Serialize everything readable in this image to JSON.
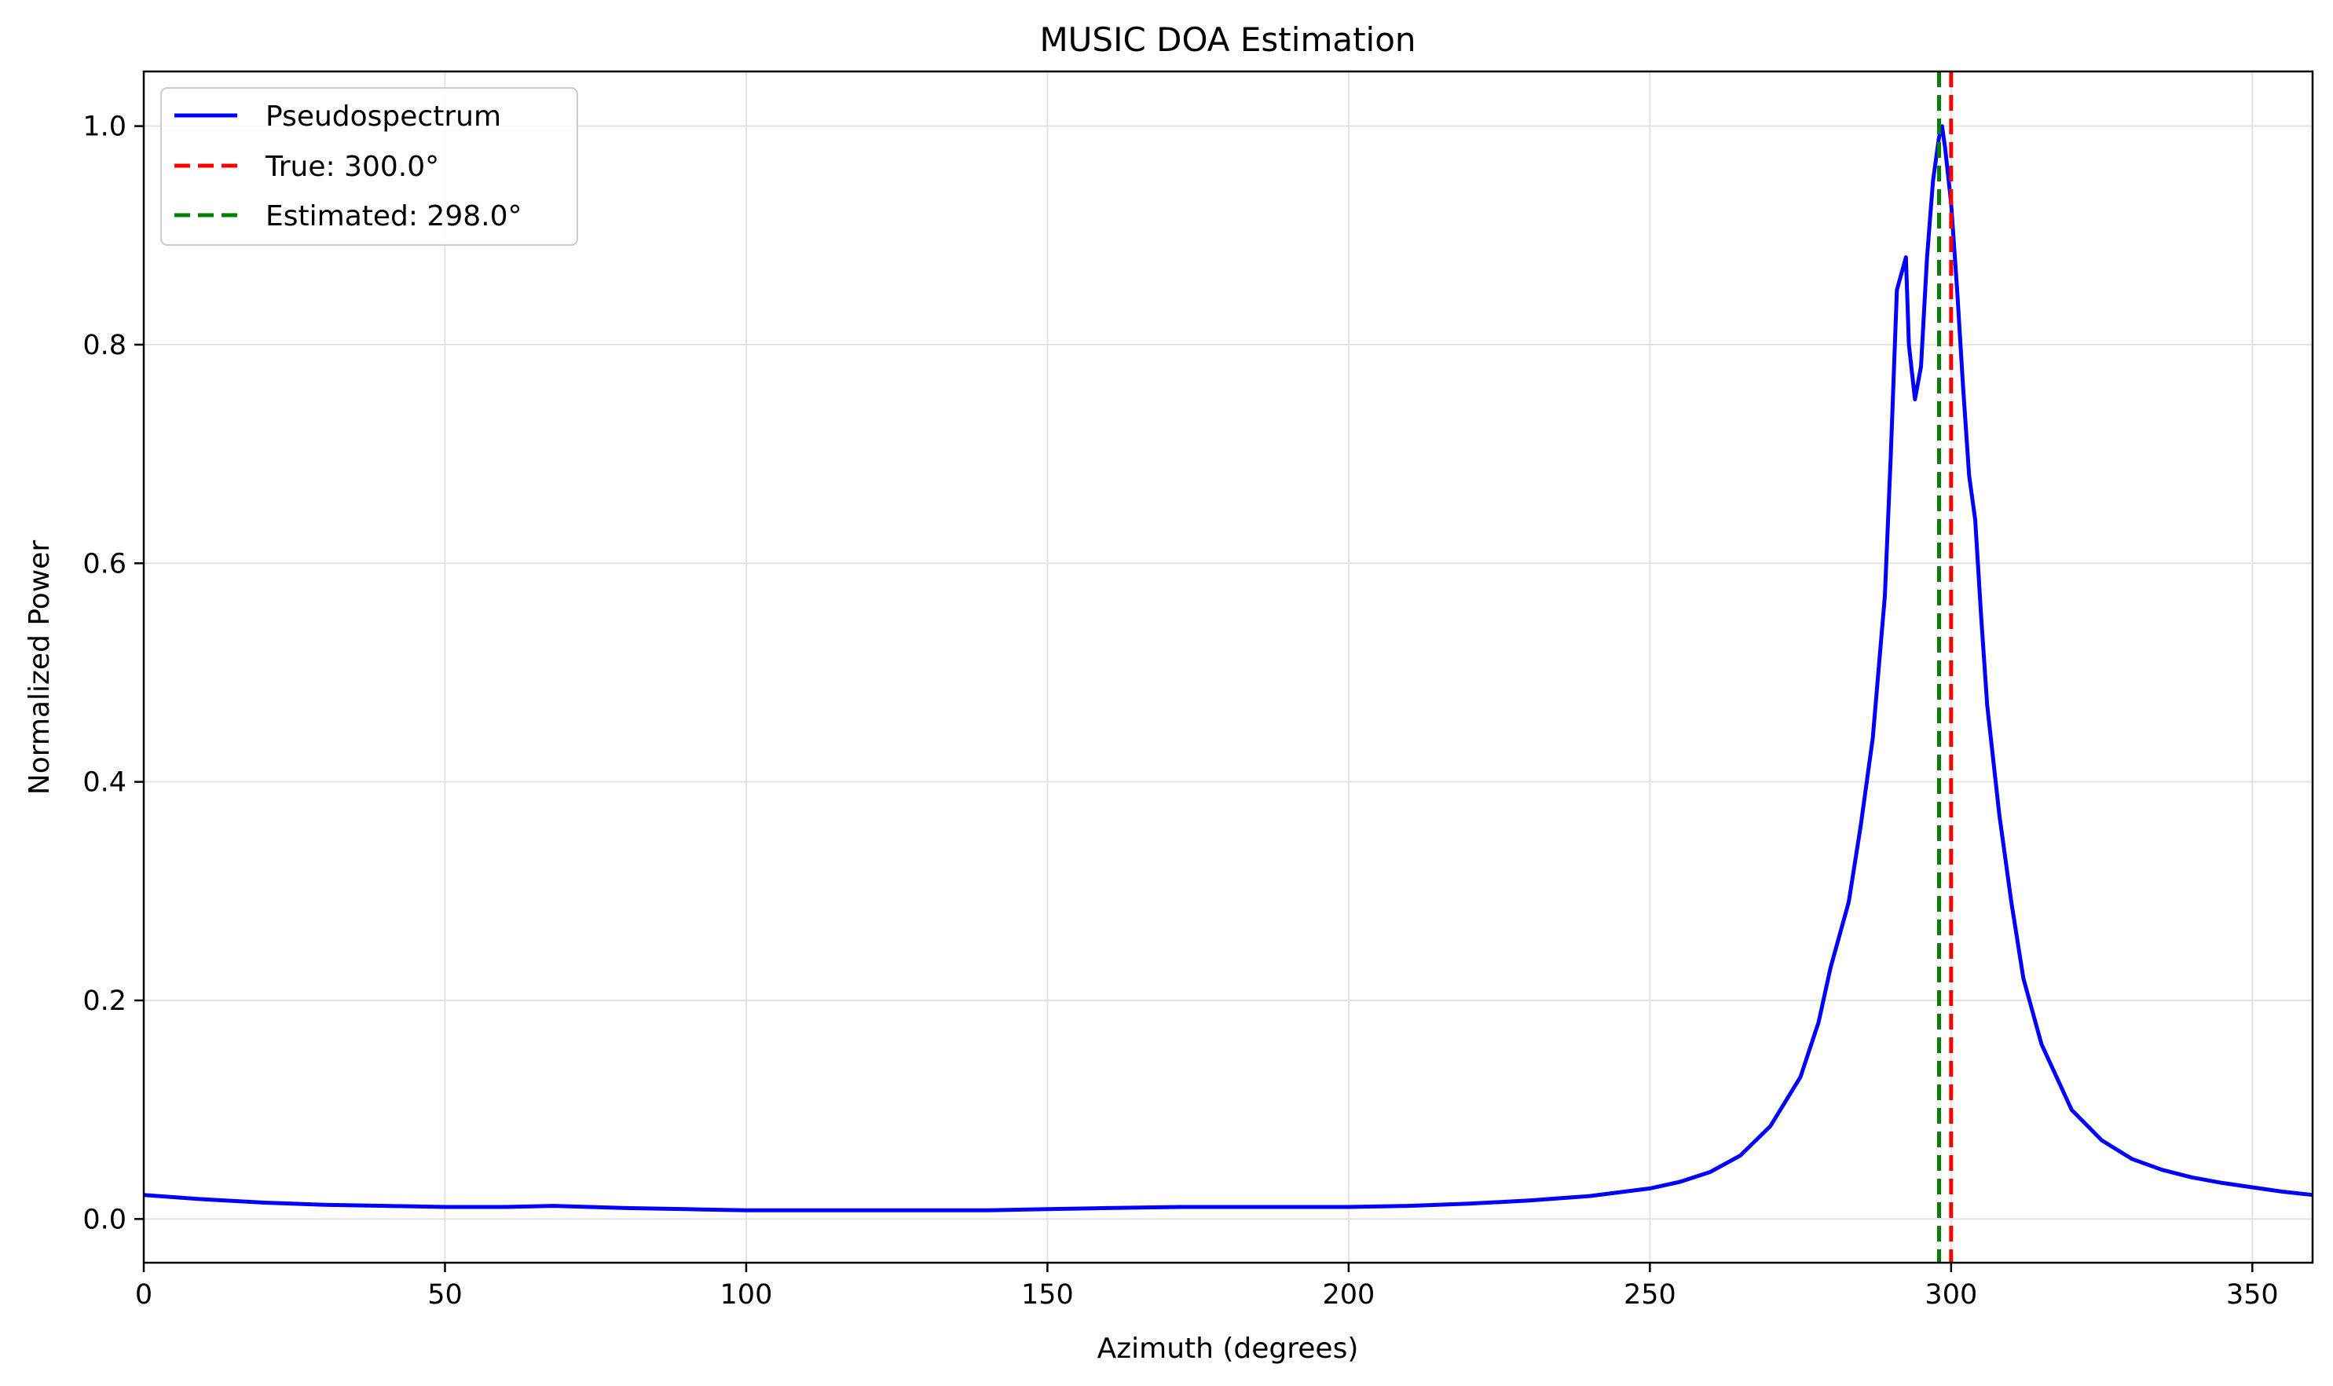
{
  "chart_data": {
    "type": "line",
    "title": "MUSIC DOA Estimation",
    "xlabel": "Azimuth (degrees)",
    "ylabel": "Normalized Power",
    "xlim": [
      0,
      360
    ],
    "ylim": [
      -0.04,
      1.05
    ],
    "xticks": [
      0,
      50,
      100,
      150,
      200,
      250,
      300,
      350
    ],
    "yticks": [
      0.0,
      0.2,
      0.4,
      0.6,
      0.8,
      1.0
    ],
    "grid": true,
    "legend_position": "top-left",
    "series": [
      {
        "name": "Pseudospectrum",
        "color": "#0000ff",
        "style": "solid",
        "x": [
          0,
          10,
          20,
          30,
          40,
          50,
          60,
          68,
          80,
          90,
          100,
          110,
          120,
          130,
          140,
          150,
          160,
          172,
          180,
          190,
          200,
          210,
          220,
          230,
          240,
          250,
          255,
          260,
          265,
          270,
          275,
          278,
          280,
          283,
          285,
          287,
          289,
          290,
          291,
          292,
          292.5,
          293,
          294,
          295,
          296,
          297,
          298,
          298.5,
          299,
          300,
          301,
          302,
          303,
          304,
          305,
          306,
          307,
          308,
          310,
          312,
          315,
          320,
          325,
          330,
          335,
          340,
          345,
          350,
          355,
          360
        ],
        "y": [
          0.022,
          0.018,
          0.015,
          0.013,
          0.012,
          0.011,
          0.011,
          0.012,
          0.01,
          0.009,
          0.008,
          0.008,
          0.008,
          0.008,
          0.008,
          0.009,
          0.01,
          0.011,
          0.011,
          0.011,
          0.011,
          0.012,
          0.014,
          0.017,
          0.021,
          0.028,
          0.034,
          0.043,
          0.058,
          0.085,
          0.13,
          0.18,
          0.23,
          0.29,
          0.36,
          0.44,
          0.57,
          0.7,
          0.85,
          0.87,
          0.88,
          0.8,
          0.75,
          0.78,
          0.88,
          0.95,
          0.99,
          1.0,
          0.98,
          0.93,
          0.85,
          0.76,
          0.68,
          0.64,
          0.55,
          0.47,
          0.42,
          0.37,
          0.29,
          0.22,
          0.16,
          0.1,
          0.072,
          0.055,
          0.045,
          0.038,
          0.033,
          0.029,
          0.025,
          0.022
        ]
      },
      {
        "name": "True: 300.0°",
        "color": "#ff0000",
        "style": "dashed",
        "vline": 300.0
      },
      {
        "name": "Estimated: 298.0°",
        "color": "#008000",
        "style": "dashed",
        "vline": 298.0
      }
    ]
  }
}
